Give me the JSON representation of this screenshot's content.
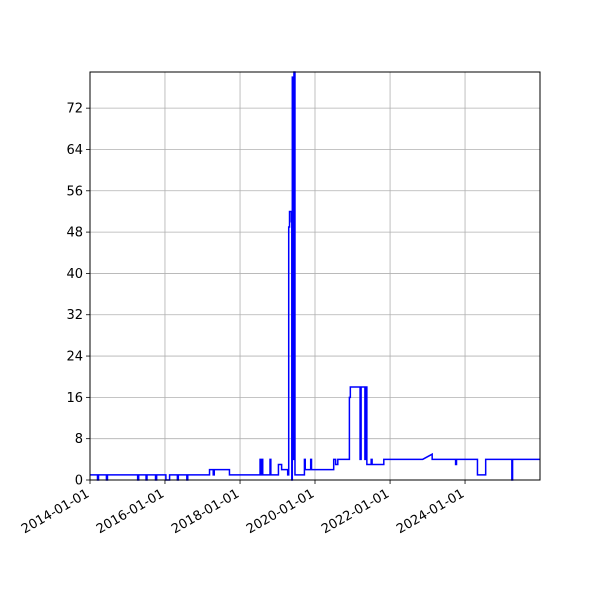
{
  "chart_data": {
    "type": "line",
    "title": "",
    "xlabel": "",
    "ylabel": "",
    "x_ticks": [
      "2014-01-01",
      "2016-01-01",
      "2018-01-01",
      "2020-01-01",
      "2022-01-01",
      "2024-01-01"
    ],
    "y_ticks": [
      "0",
      "8",
      "16",
      "24",
      "32",
      "40",
      "48",
      "56",
      "64",
      "72"
    ],
    "xlim": [
      "2014-01-01",
      "2025-12-31"
    ],
    "ylim": [
      0,
      79
    ],
    "grid": true,
    "colors": {
      "line": "#0000ff",
      "grid": "#b0b0b0",
      "axes": "#000000"
    },
    "series": [
      {
        "points": [
          [
            "2014-01-01",
            1
          ],
          [
            "2014-03-15",
            1
          ],
          [
            "2014-03-15",
            0
          ],
          [
            "2014-03-25",
            0
          ],
          [
            "2014-03-25",
            1
          ],
          [
            "2014-06-10",
            1
          ],
          [
            "2014-06-10",
            0
          ],
          [
            "2014-06-20",
            0
          ],
          [
            "2014-06-20",
            1
          ],
          [
            "2015-04-10",
            1
          ],
          [
            "2015-04-10",
            0
          ],
          [
            "2015-04-20",
            0
          ],
          [
            "2015-04-20",
            1
          ],
          [
            "2015-07-01",
            1
          ],
          [
            "2015-07-01",
            0
          ],
          [
            "2015-07-10",
            0
          ],
          [
            "2015-07-10",
            1
          ],
          [
            "2015-10-01",
            1
          ],
          [
            "2015-10-01",
            0
          ],
          [
            "2015-10-12",
            0
          ],
          [
            "2015-10-12",
            1
          ],
          [
            "2016-01-10",
            1
          ],
          [
            "2016-01-10",
            0
          ],
          [
            "2016-02-15",
            0
          ],
          [
            "2016-02-15",
            1
          ],
          [
            "2016-05-01",
            1
          ],
          [
            "2016-05-01",
            0
          ],
          [
            "2016-05-10",
            0
          ],
          [
            "2016-05-10",
            1
          ],
          [
            "2016-08-01",
            1
          ],
          [
            "2016-08-01",
            0
          ],
          [
            "2016-08-10",
            0
          ],
          [
            "2016-08-10",
            1
          ],
          [
            "2017-03-10",
            1
          ],
          [
            "2017-03-10",
            2
          ],
          [
            "2017-04-15",
            2
          ],
          [
            "2017-04-15",
            1
          ],
          [
            "2017-04-25",
            1
          ],
          [
            "2017-04-25",
            2
          ],
          [
            "2017-09-20",
            2
          ],
          [
            "2017-09-20",
            1
          ],
          [
            "2018-07-15",
            1
          ],
          [
            "2018-07-15",
            4
          ],
          [
            "2018-07-25",
            4
          ],
          [
            "2018-07-25",
            1
          ],
          [
            "2018-08-01",
            1
          ],
          [
            "2018-08-01",
            4
          ],
          [
            "2018-08-10",
            4
          ],
          [
            "2018-08-10",
            1
          ],
          [
            "2018-10-20",
            1
          ],
          [
            "2018-10-20",
            4
          ],
          [
            "2018-10-28",
            4
          ],
          [
            "2018-10-28",
            1
          ],
          [
            "2019-01-10",
            1
          ],
          [
            "2019-01-10",
            3
          ],
          [
            "2019-02-10",
            3
          ],
          [
            "2019-02-10",
            2
          ],
          [
            "2019-04-10",
            2
          ],
          [
            "2019-04-10",
            1
          ],
          [
            "2019-04-20",
            1
          ],
          [
            "2019-04-20",
            49
          ],
          [
            "2019-04-28",
            49
          ],
          [
            "2019-04-28",
            52
          ],
          [
            "2019-05-15",
            52
          ],
          [
            "2019-05-15",
            50
          ],
          [
            "2019-05-20",
            50
          ],
          [
            "2019-05-20",
            0
          ],
          [
            "2019-05-25",
            0
          ],
          [
            "2019-05-25",
            78
          ],
          [
            "2019-06-05",
            78
          ],
          [
            "2019-06-05",
            4
          ],
          [
            "2019-06-10",
            4
          ],
          [
            "2019-06-10",
            79
          ],
          [
            "2019-06-20",
            79
          ],
          [
            "2019-06-20",
            1
          ],
          [
            "2019-09-20",
            1
          ],
          [
            "2019-09-20",
            4
          ],
          [
            "2019-09-28",
            4
          ],
          [
            "2019-09-28",
            2
          ],
          [
            "2019-11-20",
            2
          ],
          [
            "2019-11-20",
            4
          ],
          [
            "2019-11-28",
            4
          ],
          [
            "2019-11-28",
            2
          ],
          [
            "2020-07-01",
            2
          ],
          [
            "2020-07-01",
            4
          ],
          [
            "2020-07-20",
            4
          ],
          [
            "2020-07-20",
            3
          ],
          [
            "2020-08-10",
            3
          ],
          [
            "2020-08-10",
            4
          ],
          [
            "2020-12-01",
            4
          ],
          [
            "2020-12-01",
            16
          ],
          [
            "2020-12-10",
            16
          ],
          [
            "2020-12-10",
            18
          ],
          [
            "2021-03-15",
            18
          ],
          [
            "2021-03-15",
            4
          ],
          [
            "2021-03-25",
            4
          ],
          [
            "2021-03-25",
            18
          ],
          [
            "2021-05-01",
            18
          ],
          [
            "2021-05-01",
            4
          ],
          [
            "2021-05-10",
            4
          ],
          [
            "2021-05-10",
            18
          ],
          [
            "2021-05-20",
            18
          ],
          [
            "2021-05-20",
            3
          ],
          [
            "2021-07-01",
            3
          ],
          [
            "2021-07-01",
            4
          ],
          [
            "2021-07-10",
            4
          ],
          [
            "2021-07-10",
            3
          ],
          [
            "2021-11-01",
            3
          ],
          [
            "2021-11-01",
            4
          ],
          [
            "2022-11-15",
            4
          ],
          [
            "2023-02-15",
            5
          ],
          [
            "2023-02-15",
            4
          ],
          [
            "2023-10-01",
            4
          ],
          [
            "2023-10-01",
            3
          ],
          [
            "2023-10-10",
            3
          ],
          [
            "2023-10-10",
            4
          ],
          [
            "2024-05-01",
            4
          ],
          [
            "2024-05-01",
            1
          ],
          [
            "2024-07-20",
            1
          ],
          [
            "2024-07-20",
            4
          ],
          [
            "2025-04-01",
            4
          ],
          [
            "2025-04-01",
            0
          ],
          [
            "2025-04-08",
            0
          ],
          [
            "2025-04-08",
            4
          ],
          [
            "2025-12-31",
            4
          ]
        ]
      }
    ]
  }
}
